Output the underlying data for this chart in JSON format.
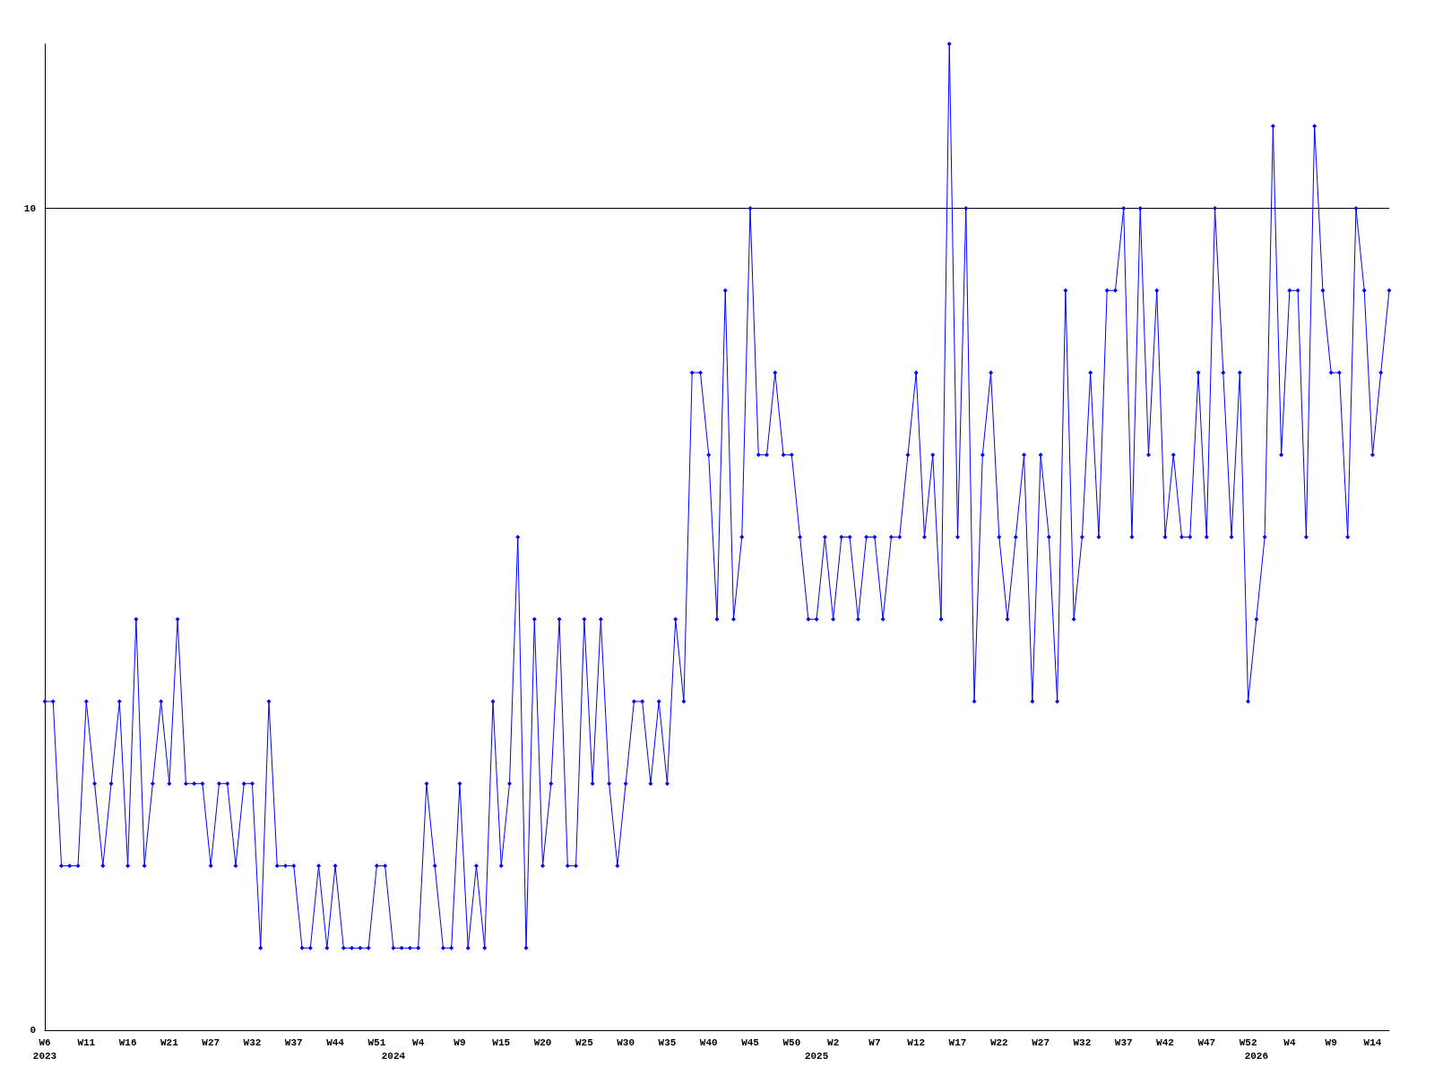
{
  "chart_data": {
    "type": "line",
    "categories": [
      "W6\n2023",
      null,
      null,
      null,
      null,
      "W11",
      null,
      null,
      null,
      null,
      "W16",
      null,
      null,
      null,
      null,
      "W21",
      null,
      null,
      null,
      null,
      "W27",
      null,
      null,
      null,
      null,
      "W32",
      null,
      null,
      null,
      null,
      "W37",
      null,
      null,
      null,
      null,
      "W44",
      null,
      null,
      null,
      null,
      "W51",
      null,
      "\n2024",
      null,
      null,
      "W4",
      null,
      null,
      null,
      null,
      "W9",
      null,
      null,
      null,
      null,
      "W15",
      null,
      null,
      null,
      null,
      "W20",
      null,
      null,
      null,
      null,
      "W25",
      null,
      null,
      null,
      null,
      "W30",
      null,
      null,
      null,
      null,
      "W35",
      null,
      null,
      null,
      null,
      "W40",
      null,
      null,
      null,
      null,
      "W45",
      null,
      null,
      null,
      null,
      "W50",
      null,
      null,
      "\n2025",
      null,
      "W2",
      null,
      null,
      null,
      null,
      "W7",
      null,
      null,
      null,
      null,
      "W12",
      null,
      null,
      null,
      null,
      "W17",
      null,
      null,
      null,
      null,
      "W22",
      null,
      null,
      null,
      null,
      "W27",
      null,
      null,
      null,
      null,
      "W32",
      null,
      null,
      null,
      null,
      "W37",
      null,
      null,
      null,
      null,
      "W42",
      null,
      null,
      null,
      null,
      "W47",
      null,
      null,
      null,
      null,
      "W52",
      "\n2026",
      null,
      null,
      null,
      "W4",
      null,
      null,
      null,
      null,
      "W9",
      null,
      null,
      null,
      null,
      "W14",
      null,
      null
    ],
    "series": [
      {
        "color": "#0000ff",
        "values": [
          4,
          4,
          2,
          2,
          2,
          4,
          3,
          2,
          3,
          4,
          2,
          5,
          2,
          3,
          4,
          3,
          5,
          3,
          3,
          3,
          2,
          3,
          3,
          2,
          3,
          3,
          1,
          4,
          2,
          2,
          2,
          1,
          1,
          2,
          1,
          2,
          1,
          1,
          1,
          1,
          2,
          2,
          1,
          1,
          1,
          1,
          3,
          2,
          1,
          1,
          3,
          1,
          2,
          1,
          4,
          2,
          3,
          6,
          1,
          5,
          2,
          3,
          5,
          2,
          2,
          5,
          3,
          5,
          3,
          2,
          3,
          4,
          4,
          3,
          4,
          3,
          5,
          4,
          8,
          8,
          7,
          5,
          9,
          5,
          6,
          10,
          7,
          7,
          8,
          7,
          7,
          6,
          5,
          5,
          6,
          5,
          6,
          6,
          5,
          6,
          6,
          5,
          6,
          6,
          7,
          8,
          6,
          7,
          5,
          12,
          6,
          10,
          4,
          7,
          8,
          6,
          5,
          6,
          7,
          4,
          7,
          6,
          4,
          9,
          5,
          6,
          8,
          6,
          9,
          9,
          10,
          6,
          10,
          7,
          9,
          6,
          7,
          6,
          6,
          8,
          6,
          10,
          8,
          6,
          8,
          4,
          5,
          6,
          11,
          7,
          9,
          9,
          6,
          11,
          9,
          8,
          8,
          6,
          10,
          9,
          7,
          8,
          9
        ]
      }
    ],
    "ylim": [
      0,
      12
    ],
    "yticks": [
      0,
      10
    ],
    "grid": "y",
    "marker": "diamond",
    "line_style": "solid"
  }
}
